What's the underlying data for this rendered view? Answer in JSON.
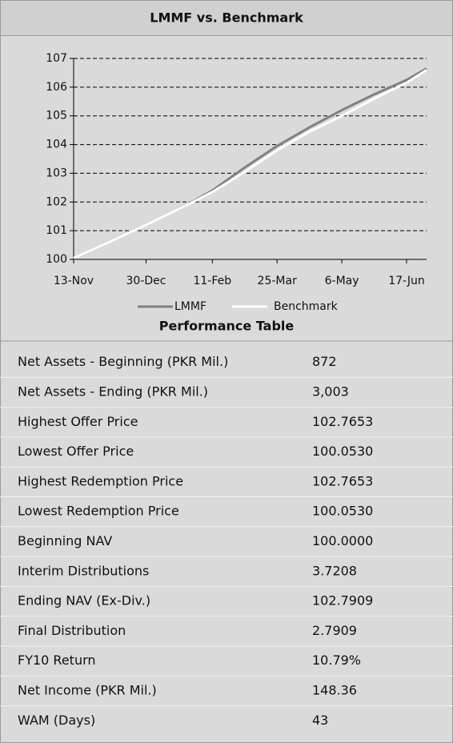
{
  "chart_data": {
    "type": "line",
    "title": "LMMF vs. Benchmark",
    "x": [
      0,
      23,
      47,
      70,
      90,
      111,
      132,
      153,
      174,
      195,
      216,
      229
    ],
    "series": [
      {
        "name": "LMMF",
        "color": "#808080",
        "values": [
          100.05,
          100.6,
          101.2,
          101.8,
          102.4,
          103.2,
          103.95,
          104.6,
          105.2,
          105.75,
          106.25,
          106.65
        ]
      },
      {
        "name": "Benchmark",
        "color": "#ffffff",
        "values": [
          100.05,
          100.6,
          101.2,
          101.8,
          102.35,
          103.05,
          103.8,
          104.45,
          105.0,
          105.6,
          106.15,
          106.6
        ]
      }
    ],
    "xlim": [
      0,
      229
    ],
    "xticks": [
      {
        "value": 0,
        "label": "13-Nov"
      },
      {
        "value": 47,
        "label": "30-Dec"
      },
      {
        "value": 90,
        "label": "11-Feb"
      },
      {
        "value": 132,
        "label": "25-Mar"
      },
      {
        "value": 174,
        "label": "6-May"
      },
      {
        "value": 216,
        "label": "17-Jun"
      }
    ],
    "ylim": [
      100,
      107
    ],
    "yticks": [
      100,
      101,
      102,
      103,
      104,
      105,
      106,
      107
    ],
    "grid": true,
    "legend": "bottom"
  },
  "table": {
    "title": "Performance Table",
    "rows": [
      [
        "Net Assets - Beginning (PKR Mil.)",
        "872"
      ],
      [
        "Net Assets  - Ending (PKR Mil.)",
        "3,003"
      ],
      [
        "Highest Offer Price",
        "102.7653"
      ],
      [
        "Lowest Offer Price",
        "100.0530"
      ],
      [
        "Highest Redemption Price",
        "102.7653"
      ],
      [
        "Lowest Redemption Price",
        "100.0530"
      ],
      [
        "Beginning NAV",
        "100.0000"
      ],
      [
        "Interim Distributions",
        "3.7208"
      ],
      [
        "Ending NAV (Ex-Div.)",
        "102.7909"
      ],
      [
        "Final Distribution",
        "2.7909"
      ],
      [
        "FY10 Return",
        "10.79%"
      ],
      [
        "Net Income (PKR Mil.)",
        "148.36"
      ],
      [
        "WAM (Days)",
        "43"
      ]
    ]
  }
}
